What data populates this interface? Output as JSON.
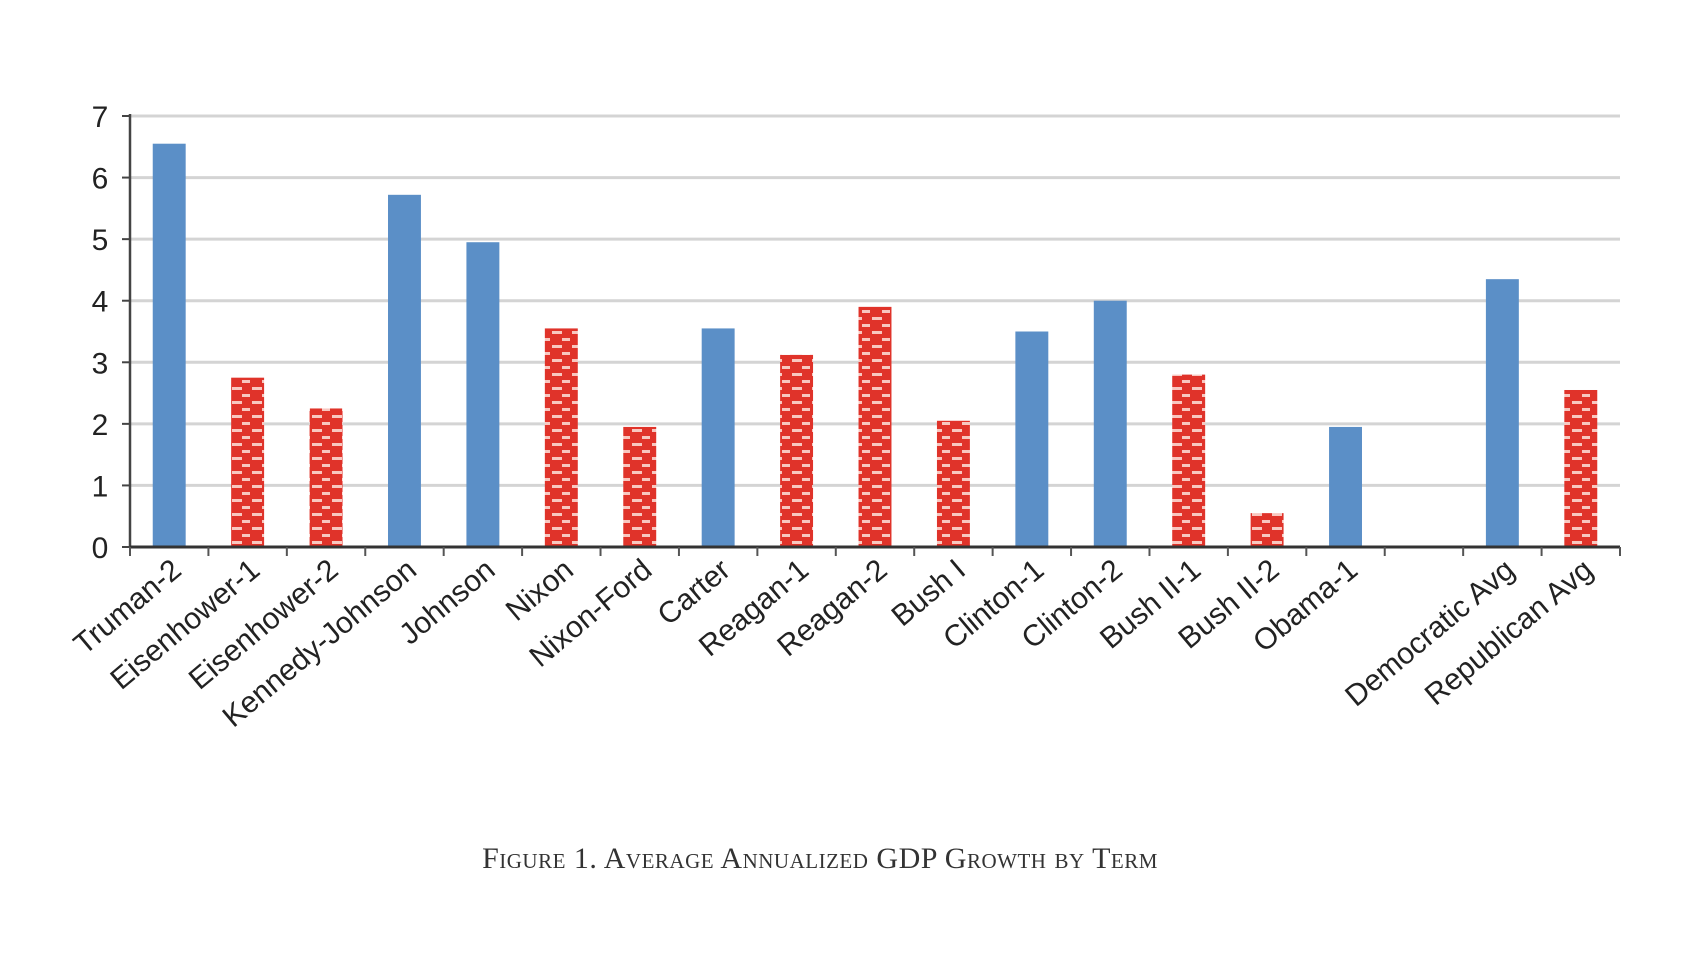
{
  "chart_data": {
    "type": "bar",
    "title": "Figure 1. Average Annualized GDP Growth by Term",
    "xlabel": "",
    "ylabel": "",
    "ylim": [
      0,
      7
    ],
    "yticks": [
      0,
      1,
      2,
      3,
      4,
      5,
      6,
      7
    ],
    "grid": true,
    "legend": "none",
    "categories": [
      "Truman-2",
      "Eisenhower-1",
      "Eisenhower-2",
      "Kennedy-Johnson",
      "Johnson",
      "Nixon",
      "Nixon-Ford",
      "Carter",
      "Reagan-1",
      "Reagan-2",
      "Bush I",
      "Clinton-1",
      "Clinton-2",
      "Bush II-1",
      "Bush II-2",
      "Obama-1",
      "",
      "Democratic Avg",
      "Republican Avg"
    ],
    "values": [
      6.55,
      2.75,
      2.25,
      5.72,
      4.95,
      3.55,
      1.95,
      3.55,
      3.12,
      3.9,
      2.05,
      3.5,
      4.0,
      2.8,
      0.55,
      1.95,
      null,
      4.35,
      2.55
    ],
    "party": [
      "D",
      "R",
      "R",
      "D",
      "D",
      "R",
      "R",
      "D",
      "R",
      "R",
      "R",
      "D",
      "D",
      "R",
      "R",
      "D",
      null,
      "D",
      "R"
    ],
    "series_styles": {
      "D": {
        "name": "Democratic",
        "color": "#5b8fc7",
        "pattern": "solid"
      },
      "R": {
        "name": "Republican",
        "color": "#e0332a",
        "pattern": "brick"
      }
    }
  },
  "caption": "Figure 1. Average Annualized GDP Growth by Term"
}
